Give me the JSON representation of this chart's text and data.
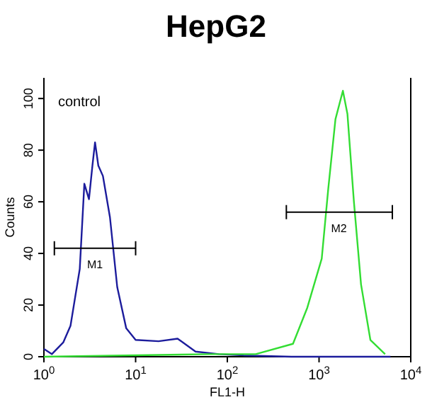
{
  "chart_data": {
    "type": "line",
    "title": "HepG2",
    "xlabel": "FL1-H",
    "ylabel": "Counts",
    "log": "x",
    "xlim": [
      1,
      10000
    ],
    "ylim": [
      0,
      108
    ],
    "xticks": [
      {
        "value": 1,
        "label": "10$^{0}$"
      },
      {
        "value": 10,
        "label": "10$^{1}$"
      },
      {
        "value": 100,
        "label": "10$^{2}$"
      },
      {
        "value": 1000,
        "label": "10$^{3}$"
      },
      {
        "value": 10000,
        "label": "10$^{4}$"
      }
    ],
    "yticks": [
      0,
      20,
      40,
      60,
      80,
      100
    ],
    "annotations": [
      "control",
      {
        "text": "M1",
        "x": 3.6,
        "y": 42
      },
      {
        "text": "M2",
        "x": 1650,
        "y": 56
      }
    ],
    "series": [
      {
        "color": "#1c1c9c",
        "x": [
          1,
          1.22,
          1.63,
          1.95,
          2.19,
          2.46,
          2.76,
          3.1,
          3.38,
          3.61,
          3.92,
          4.4,
          5.25,
          6.3,
          7.9,
          10,
          17.8,
          28.7,
          45,
          81,
          150,
          500,
          2000,
          6000
        ],
        "values": [
          3,
          1,
          5.6,
          12,
          23,
          34,
          67,
          61,
          74,
          83,
          74,
          70,
          54,
          27,
          11,
          6.5,
          6,
          7,
          2,
          1,
          0.5,
          0,
          0,
          0
        ]
      },
      {
        "color": "#33dd33",
        "x": [
          1,
          63,
          204,
          520,
          745,
          1070,
          1260,
          1510,
          1820,
          2040,
          2400,
          2870,
          3630,
          5250
        ],
        "values": [
          0,
          1,
          1,
          5,
          19,
          38,
          65,
          92,
          103,
          94,
          60,
          28,
          6.5,
          1
        ]
      },
      {
        "type": "line",
        "color": "#000000",
        "x": [
          1.3,
          3.6,
          10
        ],
        "values": [
          42,
          42,
          42
        ]
      },
      {
        "type": "line",
        "color": "#000000",
        "x": [
          440,
          1650,
          6300
        ],
        "values": [
          56,
          56,
          56
        ]
      }
    ]
  }
}
